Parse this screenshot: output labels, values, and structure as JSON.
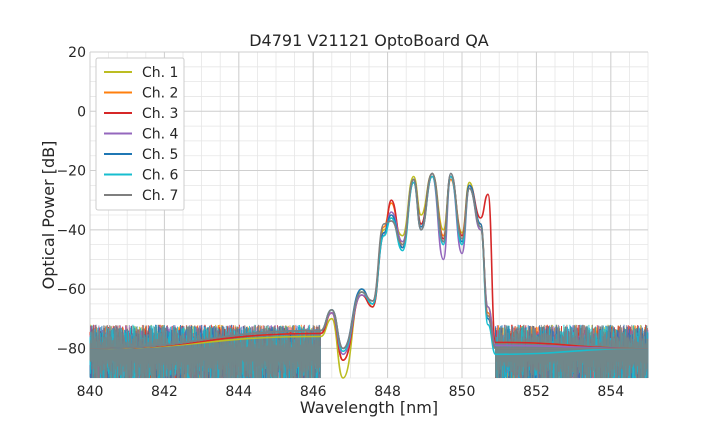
{
  "chart_data": {
    "type": "line",
    "title": "D4791 V21121 OptoBoard QA",
    "xlabel": "Wavelength [nm]",
    "ylabel": "Optical Power [dB]",
    "xlim": [
      840,
      855
    ],
    "ylim": [
      -90,
      20
    ],
    "xticks": [
      840,
      842,
      844,
      846,
      848,
      850,
      852,
      854
    ],
    "yticks": [
      20,
      0,
      -20,
      -40,
      -60,
      -80
    ],
    "x_minor_step": 0.5,
    "y_minor_step": 5,
    "grid": true,
    "legend_position": "upper-left",
    "noise_floor_db": -80,
    "series": [
      {
        "name": "Ch. 1",
        "color": "#bcbd22",
        "x": [
          840,
          846.2,
          846.5,
          846.8,
          847.3,
          847.6,
          847.9,
          848.1,
          848.4,
          848.7,
          848.9,
          849.2,
          849.5,
          849.7,
          850.0,
          850.2,
          850.5,
          850.7,
          850.9,
          855
        ],
        "y": [
          -80,
          -76,
          -70,
          -90,
          -60,
          -66,
          -40,
          -36,
          -42,
          -22,
          -35,
          -21,
          -40,
          -22,
          -41,
          -24,
          -40,
          -66,
          -78,
          -80
        ]
      },
      {
        "name": "Ch. 2",
        "color": "#ff7f0e",
        "x": [
          840,
          846.2,
          846.5,
          846.8,
          847.3,
          847.6,
          847.9,
          848.1,
          848.4,
          848.7,
          848.9,
          849.2,
          849.5,
          849.7,
          850.0,
          850.2,
          850.5,
          850.7,
          850.9,
          855
        ],
        "y": [
          -80,
          -75,
          -68,
          -84,
          -61,
          -65,
          -39,
          -31,
          -45,
          -24,
          -38,
          -22,
          -42,
          -23,
          -42,
          -26,
          -38,
          -68,
          -80,
          -80
        ]
      },
      {
        "name": "Ch. 3",
        "color": "#d62728",
        "x": [
          840,
          846.2,
          846.5,
          846.8,
          847.3,
          847.6,
          847.9,
          848.1,
          848.4,
          848.7,
          848.9,
          849.2,
          849.5,
          849.7,
          850.0,
          850.2,
          850.5,
          850.7,
          850.9,
          855
        ],
        "y": [
          -80,
          -75,
          -68,
          -84,
          -62,
          -66,
          -42,
          -30,
          -46,
          -23,
          -38,
          -21,
          -43,
          -22,
          -42,
          -25,
          -36,
          -28,
          -78,
          -80
        ]
      },
      {
        "name": "Ch. 4",
        "color": "#9467bd",
        "x": [
          840,
          846.2,
          846.5,
          846.8,
          847.3,
          847.6,
          847.9,
          848.1,
          848.4,
          848.7,
          848.9,
          849.2,
          849.5,
          849.7,
          850.0,
          850.2,
          850.5,
          850.7,
          850.9,
          855
        ],
        "y": [
          -80,
          -74,
          -68,
          -82,
          -62,
          -64,
          -41,
          -34,
          -44,
          -24,
          -40,
          -22,
          -50,
          -22,
          -48,
          -26,
          -40,
          -66,
          -79,
          -80
        ]
      },
      {
        "name": "Ch. 5",
        "color": "#1f77b4",
        "x": [
          840,
          846.2,
          846.5,
          846.8,
          847.3,
          847.6,
          847.9,
          848.1,
          848.4,
          848.7,
          848.9,
          849.2,
          849.5,
          849.7,
          850.0,
          850.2,
          850.5,
          850.7,
          850.9,
          855
        ],
        "y": [
          -80,
          -74,
          -67,
          -80,
          -60,
          -65,
          -41,
          -35,
          -46,
          -23,
          -39,
          -21,
          -44,
          -21,
          -44,
          -25,
          -38,
          -70,
          -80,
          -80
        ]
      },
      {
        "name": "Ch. 6",
        "color": "#17becf",
        "x": [
          840,
          846.2,
          846.5,
          846.8,
          847.3,
          847.6,
          847.9,
          848.1,
          848.4,
          848.7,
          848.9,
          849.2,
          849.5,
          849.7,
          850.0,
          850.2,
          850.5,
          850.7,
          850.9,
          855
        ],
        "y": [
          -80,
          -74,
          -67,
          -81,
          -61,
          -65,
          -42,
          -36,
          -47,
          -24,
          -40,
          -22,
          -45,
          -22,
          -45,
          -26,
          -39,
          -72,
          -82,
          -80
        ]
      },
      {
        "name": "Ch. 7",
        "color": "#7f7f7f",
        "x": [
          840,
          846.2,
          846.5,
          846.8,
          847.3,
          847.6,
          847.9,
          848.1,
          848.4,
          848.7,
          848.9,
          849.2,
          849.5,
          849.7,
          850.0,
          850.2,
          850.5,
          850.7,
          850.9,
          855
        ],
        "y": [
          -80,
          -74,
          -67,
          -80,
          -61,
          -64,
          -38,
          -37,
          -45,
          -23,
          -40,
          -21,
          -44,
          -21,
          -43,
          -26,
          -39,
          -69,
          -80,
          -80
        ]
      }
    ]
  }
}
